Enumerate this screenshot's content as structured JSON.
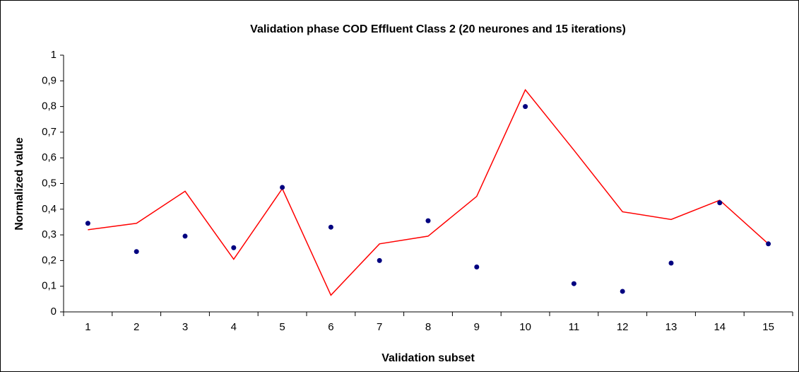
{
  "chart_data": {
    "type": "line",
    "title": "Validation phase COD Effluent Class 2 (20 neurones and 15 iterations)",
    "x_label": "Validation subset",
    "y_label": "Normalized value",
    "categories": [
      "1",
      "2",
      "3",
      "4",
      "5",
      "6",
      "7",
      "8",
      "9",
      "10",
      "11",
      "12",
      "13",
      "14",
      "15"
    ],
    "series": [
      {
        "color": "#ff0000",
        "mode": "line",
        "values": [
          0.32,
          0.345,
          0.47,
          0.205,
          0.48,
          0.065,
          0.265,
          0.295,
          0.45,
          0.865,
          0.63,
          0.39,
          0.36,
          0.435,
          0.265
        ]
      },
      {
        "color": "#000080",
        "mode": "markers",
        "values": [
          0.345,
          0.235,
          0.295,
          0.25,
          0.485,
          0.33,
          0.2,
          0.355,
          0.175,
          0.8,
          0.11,
          0.08,
          0.19,
          0.425,
          0.265
        ]
      }
    ],
    "ylim": [
      0,
      1
    ],
    "yticks": [
      0,
      {
        "value": 0.1,
        "label": "0,1"
      },
      {
        "value": 0.2,
        "label": "0,2"
      },
      {
        "value": 0.3,
        "label": "0,3"
      },
      {
        "value": 0.4,
        "label": "0,4"
      },
      {
        "value": 0.5,
        "label": "0,5"
      },
      {
        "value": 0.6,
        "label": "0,6"
      },
      {
        "value": 0.7,
        "label": "0,7"
      },
      {
        "value": 0.8,
        "label": "0,8"
      },
      {
        "value": 0.9,
        "label": "0,9"
      },
      1
    ],
    "grid": false
  }
}
